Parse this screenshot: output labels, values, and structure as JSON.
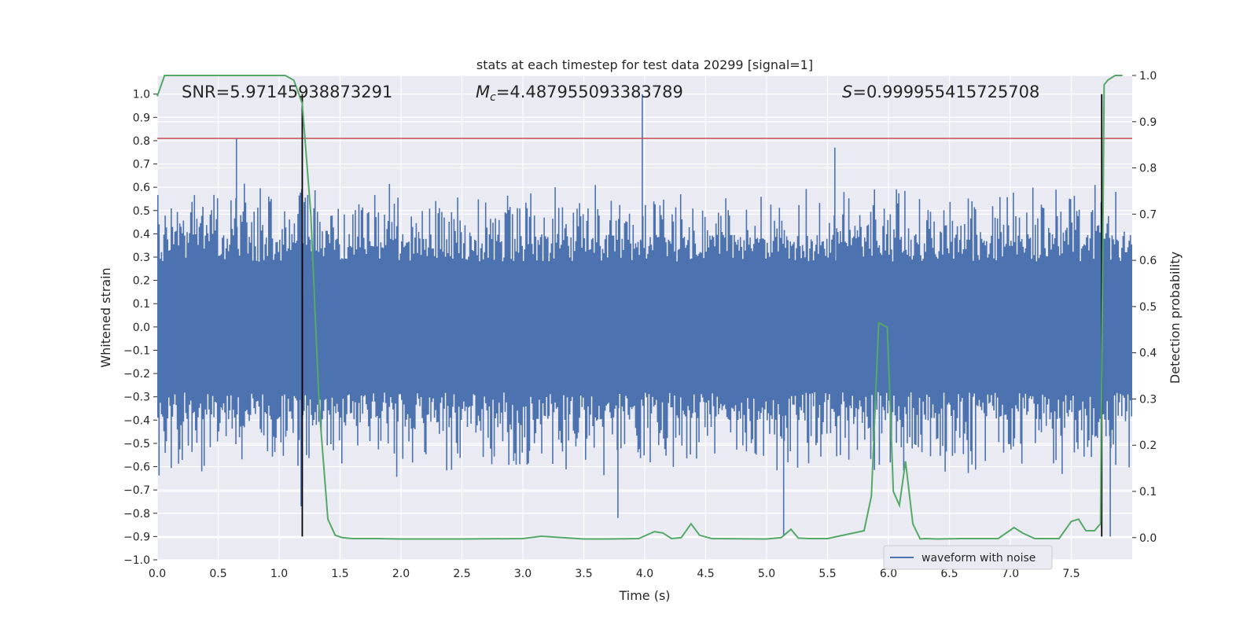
{
  "chart_data": {
    "type": "line",
    "title": "stats at each timestep for test data 20299 [signal=1]",
    "xlabel": "Time (s)",
    "ylabel": "Whitened strain",
    "y2label": "Detection probability",
    "xlim": [
      0.0,
      8.0
    ],
    "ylim": [
      -1.0,
      1.08
    ],
    "y2lim": [
      -0.048,
      1.0
    ],
    "xticks": [
      "0.0",
      "0.5",
      "1.0",
      "1.5",
      "2.0",
      "2.5",
      "3.0",
      "3.5",
      "4.0",
      "4.5",
      "5.0",
      "5.5",
      "6.0",
      "6.5",
      "7.0",
      "7.5"
    ],
    "yticks": [
      "−1.0",
      "−0.9",
      "−0.8",
      "−0.7",
      "−0.6",
      "−0.5",
      "−0.4",
      "−0.3",
      "−0.2",
      "−0.1",
      "0.0",
      "0.1",
      "0.2",
      "0.3",
      "0.4",
      "0.5",
      "0.6",
      "0.7",
      "0.8",
      "0.9",
      "1.0"
    ],
    "y2ticks": [
      "0.0",
      "0.1",
      "0.2",
      "0.3",
      "0.4",
      "0.5",
      "0.6",
      "0.7",
      "0.8",
      "0.9",
      "1.0"
    ],
    "annotations": {
      "snr": "SNR=5.97145938873291",
      "mc_symbol": "M",
      "mc_sub": "c",
      "mc_value": "=4.487955093383789",
      "s_symbol": "S",
      "s_value": "=0.999955415725708"
    },
    "legend": {
      "entry": "waveform with noise",
      "location": "lower right"
    },
    "waveform": {
      "name": "waveform with noise",
      "color": "#4c72b0",
      "t_start": 0.0,
      "t_end": 8.0,
      "num_samples": 800,
      "envelope_max": 0.95,
      "spikes": [
        {
          "t": 0.65,
          "y": 0.81
        },
        {
          "t": 3.98,
          "y": 1.0
        },
        {
          "t": 5.56,
          "y": 0.77
        },
        {
          "t": 1.18,
          "y": -0.77
        },
        {
          "t": 3.78,
          "y": -0.82
        },
        {
          "t": 5.14,
          "y": -0.9
        },
        {
          "t": 7.82,
          "y": -0.9
        }
      ]
    },
    "threshold": {
      "value": 0.81,
      "color": "#c44e52"
    },
    "vertical_lines": [
      {
        "x": 1.19,
        "ymin": -0.9,
        "ymax": 1.0,
        "color": "#000000"
      },
      {
        "x": 7.75,
        "ymin": -0.9,
        "ymax": 1.0,
        "color": "#000000"
      }
    ],
    "detection_probability": {
      "color": "#55a868",
      "t": [
        0.0,
        0.06,
        0.15,
        0.3,
        0.5,
        0.7,
        0.9,
        1.05,
        1.12,
        1.19,
        1.26,
        1.33,
        1.4,
        1.46,
        1.52,
        1.6,
        1.8,
        2.0,
        2.5,
        3.0,
        3.15,
        3.5,
        3.7,
        3.95,
        4.08,
        4.15,
        4.22,
        4.3,
        4.38,
        4.45,
        4.55,
        5.0,
        5.12,
        5.2,
        5.26,
        5.35,
        5.5,
        5.8,
        5.86,
        5.92,
        5.99,
        6.04,
        6.09,
        6.14,
        6.2,
        6.26,
        6.3,
        6.4,
        6.6,
        6.9,
        7.03,
        7.1,
        7.2,
        7.4,
        7.5,
        7.56,
        7.62,
        7.69,
        7.74,
        7.77,
        7.8,
        7.86,
        7.92
      ],
      "p": [
        0.955,
        1.0,
        1.0,
        1.0,
        1.0,
        1.0,
        1.0,
        1.0,
        0.99,
        0.94,
        0.7,
        0.28,
        0.04,
        0.005,
        0.0,
        -0.002,
        -0.002,
        -0.003,
        -0.003,
        -0.002,
        0.003,
        -0.003,
        -0.003,
        -0.002,
        0.013,
        0.01,
        -0.002,
        0.0,
        0.03,
        0.005,
        -0.002,
        -0.003,
        0.0,
        0.018,
        -0.001,
        -0.002,
        -0.002,
        0.015,
        0.09,
        0.465,
        0.455,
        0.1,
        0.07,
        0.165,
        0.03,
        -0.003,
        -0.002,
        -0.003,
        -0.002,
        -0.002,
        0.022,
        0.01,
        -0.002,
        -0.002,
        0.035,
        0.04,
        0.015,
        0.015,
        0.03,
        0.98,
        0.99,
        1.0,
        1.0
      ]
    }
  }
}
